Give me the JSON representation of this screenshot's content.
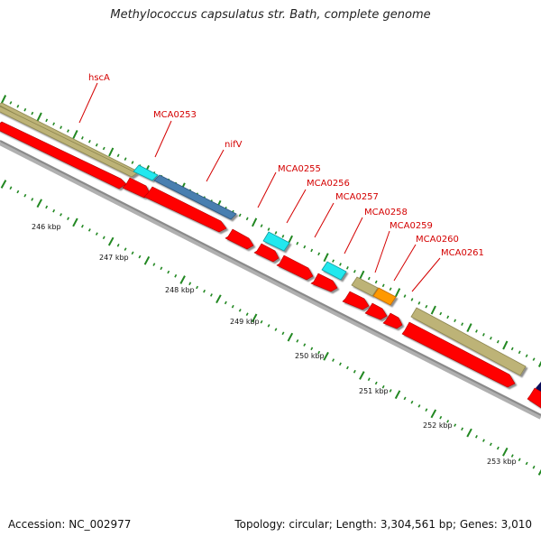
{
  "title": "Methylococcus capsulatus str. Bath, complete genome",
  "footer": {
    "accession": "Accession: NC_002977",
    "summary": "Topology: circular; Length: 3,304,561 bp; Genes: 3,010"
  },
  "gene_labels": [
    {
      "id": "hscA",
      "text": "hscA"
    },
    {
      "id": "MCA0253",
      "text": "MCA0253"
    },
    {
      "id": "nifV",
      "text": "nifV"
    },
    {
      "id": "MCA0255",
      "text": "MCA0255"
    },
    {
      "id": "MCA0256",
      "text": "MCA0256"
    },
    {
      "id": "MCA0257",
      "text": "MCA0257"
    },
    {
      "id": "MCA0258",
      "text": "MCA0258"
    },
    {
      "id": "MCA0259",
      "text": "MCA0259"
    },
    {
      "id": "MCA0260",
      "text": "MCA0260"
    },
    {
      "id": "MCA0261",
      "text": "MCA0261"
    }
  ],
  "scale_labels": [
    "246 kbp",
    "247 kbp",
    "248 kbp",
    "249 kbp",
    "250 kbp",
    "251 kbp",
    "252 kbp",
    "253 kbp"
  ],
  "colors": {
    "cds": "#ff0000",
    "label": "#d40000",
    "backbone": "#909090",
    "tick": "#228822",
    "tan_feature": "#bdb377",
    "cyan_feature": "#22e8ee",
    "blue_feature": "#4a7fb0",
    "orange_feature": "#ff9900",
    "navy_feature": "#0a0a5a"
  }
}
